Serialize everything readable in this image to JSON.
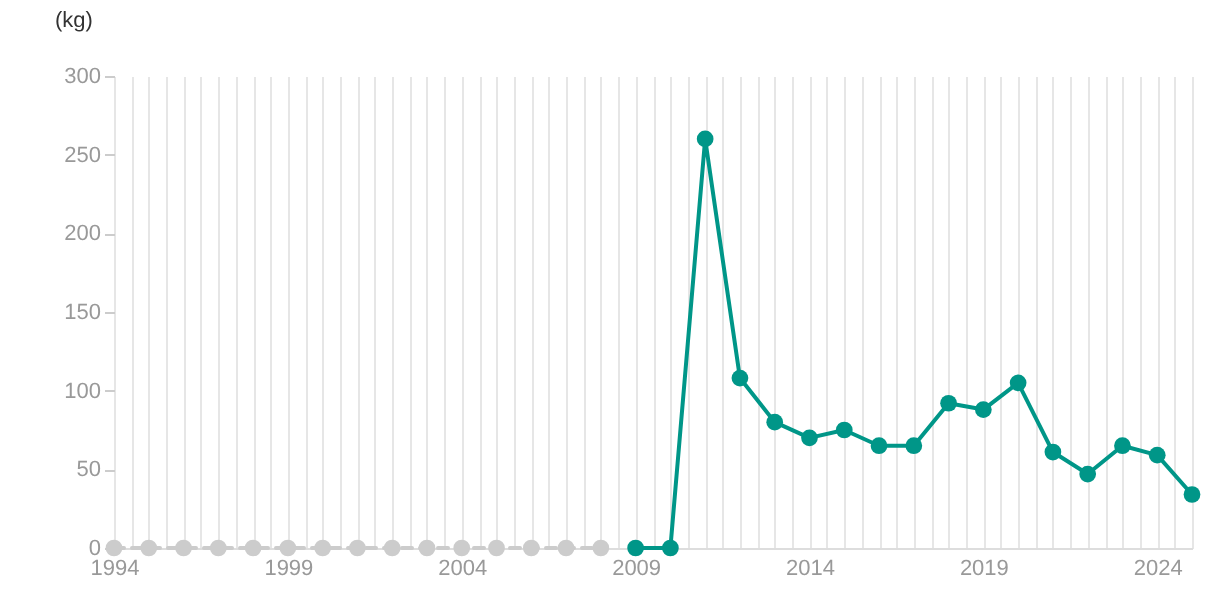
{
  "chart_data": {
    "type": "line",
    "ylabel": "(kg)",
    "xlim": [
      1994,
      2025
    ],
    "xticks": [
      1994,
      {
        "value": 1994.5,
        "label": null
      },
      {
        "value": 1995,
        "label": null
      },
      {
        "value": 1995.5,
        "label": null
      },
      {
        "value": 1996,
        "label": null
      },
      {
        "value": 1996.5,
        "label": null
      },
      {
        "value": 1997,
        "label": null
      },
      {
        "value": 1997.5,
        "label": null
      },
      {
        "value": 1998,
        "label": null
      },
      {
        "value": 1998.5,
        "label": null
      },
      1999,
      {
        "value": 1999.5,
        "label": null
      },
      {
        "value": 2000,
        "label": null
      },
      {
        "value": 2000.5,
        "label": null
      },
      {
        "value": 2001,
        "label": null
      },
      {
        "value": 2001.5,
        "label": null
      },
      {
        "value": 2002,
        "label": null
      },
      {
        "value": 2002.5,
        "label": null
      },
      {
        "value": 2003,
        "label": null
      },
      {
        "value": 2003.5,
        "label": null
      },
      2004,
      {
        "value": 2004.5,
        "label": null
      },
      {
        "value": 2005,
        "label": null
      },
      {
        "value": 2005.5,
        "label": null
      },
      {
        "value": 2006,
        "label": null
      },
      {
        "value": 2006.5,
        "label": null
      },
      {
        "value": 2007,
        "label": null
      },
      {
        "value": 2007.5,
        "label": null
      },
      {
        "value": 2008,
        "label": null
      },
      {
        "value": 2008.5,
        "label": null
      },
      2009,
      {
        "value": 2009.5,
        "label": null
      },
      {
        "value": 2010,
        "label": null
      },
      {
        "value": 2010.5,
        "label": null
      },
      {
        "value": 2011,
        "label": null
      },
      {
        "value": 2011.5,
        "label": null
      },
      {
        "value": 2012,
        "label": null
      },
      {
        "value": 2012.5,
        "label": null
      },
      {
        "value": 2013,
        "label": null
      },
      {
        "value": 2013.5,
        "label": null
      },
      2014,
      {
        "value": 2014.5,
        "label": null
      },
      {
        "value": 2015,
        "label": null
      },
      {
        "value": 2015.5,
        "label": null
      },
      {
        "value": 2016,
        "label": null
      },
      {
        "value": 2016.5,
        "label": null
      },
      {
        "value": 2017,
        "label": null
      },
      {
        "value": 2017.5,
        "label": null
      },
      {
        "value": 2018,
        "label": null
      },
      {
        "value": 2018.5,
        "label": null
      },
      2019,
      {
        "value": 2019.5,
        "label": null
      },
      {
        "value": 2020,
        "label": null
      },
      {
        "value": 2020.5,
        "label": null
      },
      {
        "value": 2021,
        "label": null
      },
      {
        "value": 2021.5,
        "label": null
      },
      {
        "value": 2022,
        "label": null
      },
      {
        "value": 2022.5,
        "label": null
      },
      {
        "value": 2023,
        "label": null
      },
      {
        "value": 2023.5,
        "label": null
      },
      2024,
      {
        "value": 2024.5,
        "label": null
      },
      {
        "value": 2025,
        "label": null
      }
    ],
    "ylim": [
      0,
      300
    ],
    "yticks": [
      0,
      50,
      100,
      150,
      200,
      250,
      300
    ],
    "grid": "x",
    "marker": "circle",
    "series": [
      {
        "color": "#cccccc",
        "line_style": "dashed",
        "x": [
          1994,
          1995,
          1996,
          1997,
          1998,
          1999,
          2000,
          2001,
          2002,
          2003,
          2004,
          2005,
          2006,
          2007,
          2008
        ],
        "values": [
          0,
          0,
          0,
          0,
          0,
          0,
          0,
          0,
          0,
          0,
          0,
          0,
          0,
          0,
          0
        ]
      },
      {
        "color": "#009688",
        "line_style": "solid",
        "x": [
          2009,
          2010,
          2011,
          2012,
          2013,
          2014,
          2015,
          2016,
          2017,
          2018,
          2019,
          2020,
          2021,
          2022,
          2023,
          2024,
          2025
        ],
        "values": [
          0,
          0,
          260,
          108,
          80,
          70,
          75,
          65,
          65,
          92,
          88,
          105,
          61,
          47,
          65,
          59,
          34
        ]
      }
    ]
  }
}
